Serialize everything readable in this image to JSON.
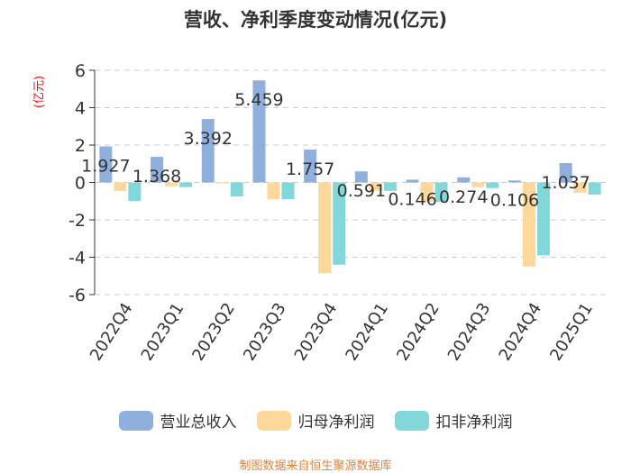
{
  "chart_data": {
    "type": "bar",
    "title": "营收、净利季度变动情况(亿元)",
    "unit": "(亿元)",
    "categories": [
      "2022Q4",
      "2023Q1",
      "2023Q2",
      "2023Q3",
      "2023Q4",
      "2024Q1",
      "2024Q2",
      "2024Q3",
      "2024Q4",
      "2025Q1"
    ],
    "series": [
      {
        "name": "营业总收入",
        "color": "#8fb0dc",
        "values": [
          1.927,
          1.368,
          3.392,
          5.459,
          1.757,
          0.591,
          0.146,
          0.274,
          0.106,
          1.037
        ]
      },
      {
        "name": "归母净利润",
        "color": "#fdd89a",
        "values": [
          -0.45,
          -0.2,
          -0.05,
          -0.9,
          -4.85,
          -0.45,
          -1.05,
          -0.25,
          -4.5,
          -0.55
        ]
      },
      {
        "name": "扣非净利润",
        "color": "#82d8d8",
        "values": [
          -1.0,
          -0.25,
          -0.75,
          -0.9,
          -4.4,
          -0.45,
          -1.05,
          -0.3,
          -3.9,
          -0.65
        ]
      }
    ],
    "data_labels": [
      "1.927",
      "1.368",
      "3.392",
      "5.459",
      "1.757",
      "0.591",
      "0.146",
      "0.274",
      "0.106",
      "1.037"
    ],
    "yticks": [
      "6",
      "4",
      "2",
      "0",
      "-2",
      "-4",
      "-6"
    ],
    "ylim": [
      -6,
      6
    ],
    "grid": true,
    "legend": "bottom"
  },
  "footer": "制图数据来自恒生聚源数据库"
}
